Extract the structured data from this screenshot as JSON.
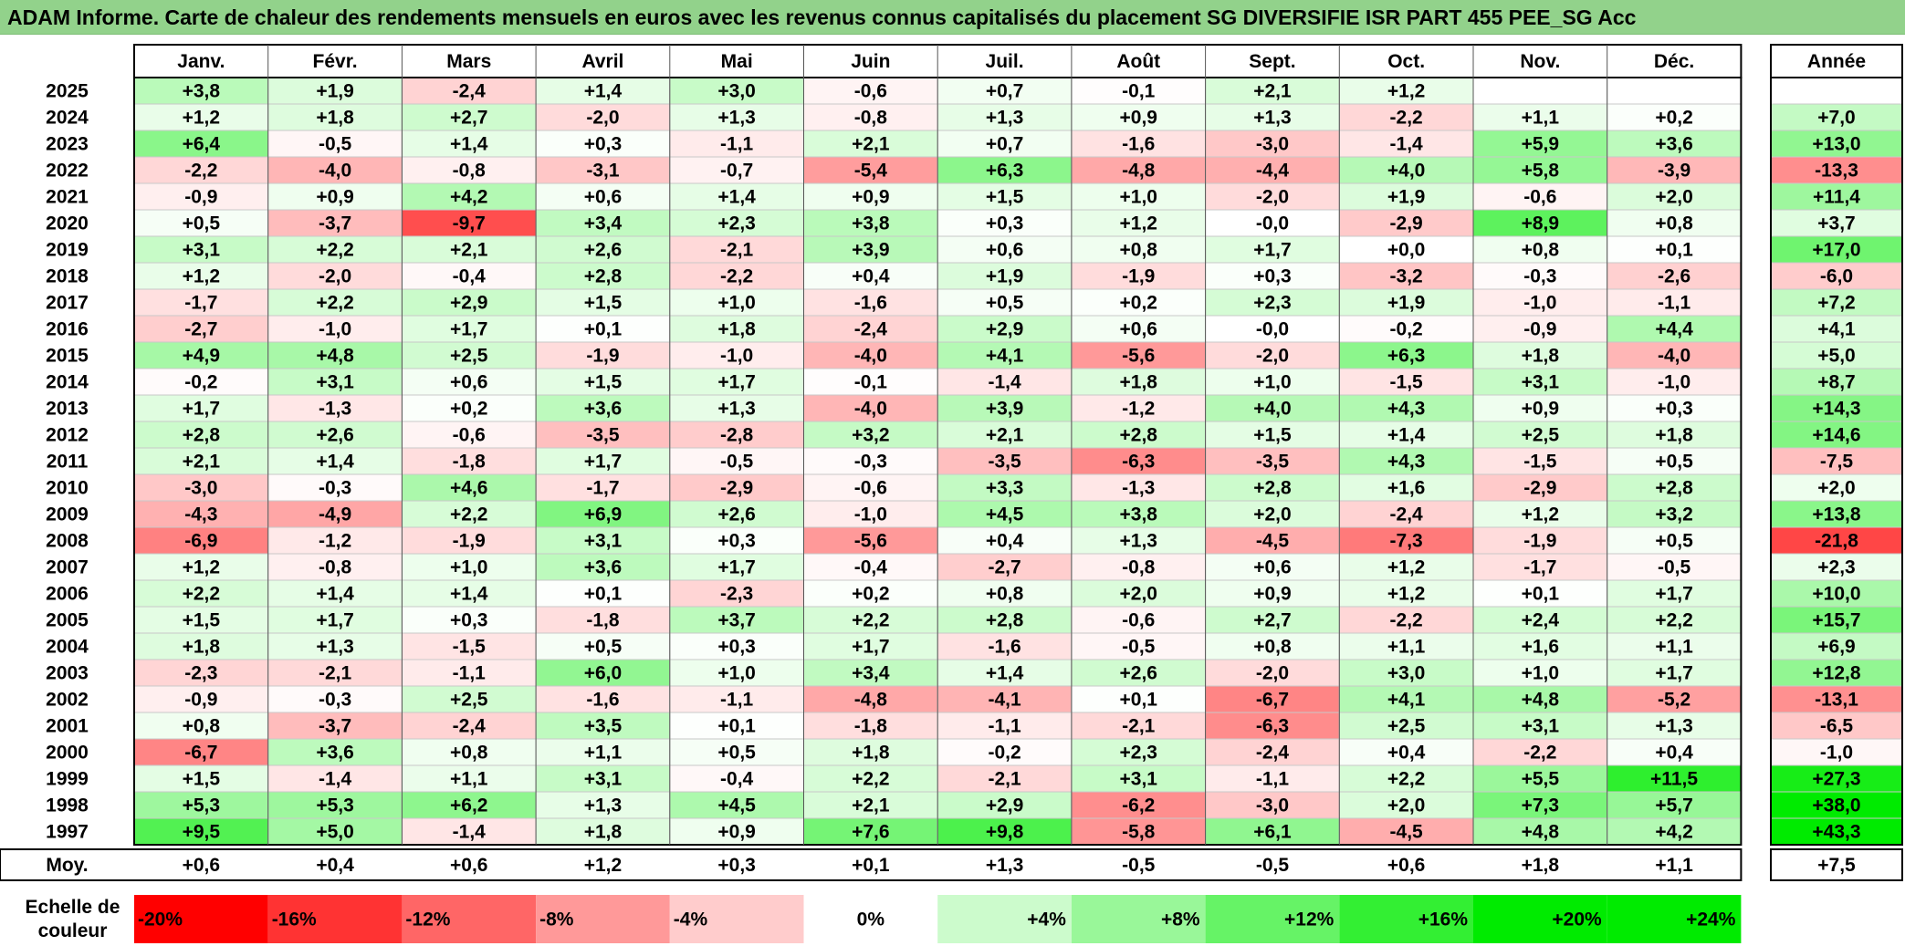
{
  "title": "ADAM Informe. Carte de chaleur des rendements mensuels en euros avec les revenus connus capitalisés du placement SG DIVERSIFIE ISR PART 455 PEE_SG Acc",
  "chart_data": {
    "type": "heatmap",
    "columns": [
      "Janv.",
      "Févr.",
      "Mars",
      "Avril",
      "Mai",
      "Juin",
      "Juil.",
      "Août",
      "Sept.",
      "Oct.",
      "Nov.",
      "Déc."
    ],
    "year_header": "Année",
    "rows": [
      {
        "year": "2025",
        "months": [
          "+3,8",
          "+1,9",
          "-2,4",
          "+1,4",
          "+3,0",
          "-0,6",
          "+0,7",
          "-0,1",
          "+2,1",
          "+1,2",
          "",
          ""
        ],
        "annual": ""
      },
      {
        "year": "2024",
        "months": [
          "+1,2",
          "+1,8",
          "+2,7",
          "-2,0",
          "+1,3",
          "-0,8",
          "+1,3",
          "+0,9",
          "+1,3",
          "-2,2",
          "+1,1",
          "+0,2"
        ],
        "annual": "+7,0"
      },
      {
        "year": "2023",
        "months": [
          "+6,4",
          "-0,5",
          "+1,4",
          "+0,3",
          "-1,1",
          "+2,1",
          "+0,7",
          "-1,6",
          "-3,0",
          "-1,4",
          "+5,9",
          "+3,6"
        ],
        "annual": "+13,0"
      },
      {
        "year": "2022",
        "months": [
          "-2,2",
          "-4,0",
          "-0,8",
          "-3,1",
          "-0,7",
          "-5,4",
          "+6,3",
          "-4,8",
          "-4,4",
          "+4,0",
          "+5,8",
          "-3,9"
        ],
        "annual": "-13,3"
      },
      {
        "year": "2021",
        "months": [
          "-0,9",
          "+0,9",
          "+4,2",
          "+0,6",
          "+1,4",
          "+0,9",
          "+1,5",
          "+1,0",
          "-2,0",
          "+1,9",
          "-0,6",
          "+2,0"
        ],
        "annual": "+11,4"
      },
      {
        "year": "2020",
        "months": [
          "+0,5",
          "-3,7",
          "-9,7",
          "+3,4",
          "+2,3",
          "+3,8",
          "+0,3",
          "+1,2",
          "-0,0",
          "-2,9",
          "+8,9",
          "+0,8"
        ],
        "annual": "+3,7"
      },
      {
        "year": "2019",
        "months": [
          "+3,1",
          "+2,2",
          "+2,1",
          "+2,6",
          "-2,1",
          "+3,9",
          "+0,6",
          "+0,8",
          "+1,7",
          "+0,0",
          "+0,8",
          "+0,1"
        ],
        "annual": "+17,0"
      },
      {
        "year": "2018",
        "months": [
          "+1,2",
          "-2,0",
          "-0,4",
          "+2,8",
          "-2,2",
          "+0,4",
          "+1,9",
          "-1,9",
          "+0,3",
          "-3,2",
          "-0,3",
          "-2,6"
        ],
        "annual": "-6,0"
      },
      {
        "year": "2017",
        "months": [
          "-1,7",
          "+2,2",
          "+2,9",
          "+1,5",
          "+1,0",
          "-1,6",
          "+0,5",
          "+0,2",
          "+2,3",
          "+1,9",
          "-1,0",
          "-1,1"
        ],
        "annual": "+7,2"
      },
      {
        "year": "2016",
        "months": [
          "-2,7",
          "-1,0",
          "+1,7",
          "+0,1",
          "+1,8",
          "-2,4",
          "+2,9",
          "+0,6",
          "-0,0",
          "-0,2",
          "-0,9",
          "+4,4"
        ],
        "annual": "+4,1"
      },
      {
        "year": "2015",
        "months": [
          "+4,9",
          "+4,8",
          "+2,5",
          "-1,9",
          "-1,0",
          "-4,0",
          "+4,1",
          "-5,6",
          "-2,0",
          "+6,3",
          "+1,8",
          "-4,0"
        ],
        "annual": "+5,0"
      },
      {
        "year": "2014",
        "months": [
          "-0,2",
          "+3,1",
          "+0,6",
          "+1,5",
          "+1,7",
          "-0,1",
          "-1,4",
          "+1,8",
          "+1,0",
          "-1,5",
          "+3,1",
          "-1,0"
        ],
        "annual": "+8,7"
      },
      {
        "year": "2013",
        "months": [
          "+1,7",
          "-1,3",
          "+0,2",
          "+3,6",
          "+1,3",
          "-4,0",
          "+3,9",
          "-1,2",
          "+4,0",
          "+4,3",
          "+0,9",
          "+0,3"
        ],
        "annual": "+14,3"
      },
      {
        "year": "2012",
        "months": [
          "+2,8",
          "+2,6",
          "-0,6",
          "-3,5",
          "-2,8",
          "+3,2",
          "+2,1",
          "+2,8",
          "+1,5",
          "+1,4",
          "+2,5",
          "+1,8"
        ],
        "annual": "+14,6"
      },
      {
        "year": "2011",
        "months": [
          "+2,1",
          "+1,4",
          "-1,8",
          "+1,7",
          "-0,5",
          "-0,3",
          "-3,5",
          "-6,3",
          "-3,5",
          "+4,3",
          "-1,5",
          "+0,5"
        ],
        "annual": "-7,5"
      },
      {
        "year": "2010",
        "months": [
          "-3,0",
          "-0,3",
          "+4,6",
          "-1,7",
          "-2,9",
          "-0,6",
          "+3,3",
          "-1,3",
          "+2,8",
          "+1,6",
          "-2,9",
          "+2,8"
        ],
        "annual": "+2,0"
      },
      {
        "year": "2009",
        "months": [
          "-4,3",
          "-4,9",
          "+2,2",
          "+6,9",
          "+2,6",
          "-1,0",
          "+4,5",
          "+3,8",
          "+2,0",
          "-2,4",
          "+1,2",
          "+3,2"
        ],
        "annual": "+13,8"
      },
      {
        "year": "2008",
        "months": [
          "-6,9",
          "-1,2",
          "-1,9",
          "+3,1",
          "+0,3",
          "-5,6",
          "+0,4",
          "+1,3",
          "-4,5",
          "-7,3",
          "-1,9",
          "+0,5"
        ],
        "annual": "-21,8"
      },
      {
        "year": "2007",
        "months": [
          "+1,2",
          "-0,8",
          "+1,0",
          "+3,6",
          "+1,7",
          "-0,4",
          "-2,7",
          "-0,8",
          "+0,6",
          "+1,2",
          "-1,7",
          "-0,5"
        ],
        "annual": "+2,3"
      },
      {
        "year": "2006",
        "months": [
          "+2,2",
          "+1,4",
          "+1,4",
          "+0,1",
          "-2,3",
          "+0,2",
          "+0,8",
          "+2,0",
          "+0,9",
          "+1,2",
          "+0,1",
          "+1,7"
        ],
        "annual": "+10,0"
      },
      {
        "year": "2005",
        "months": [
          "+1,5",
          "+1,7",
          "+0,3",
          "-1,8",
          "+3,7",
          "+2,2",
          "+2,8",
          "-0,6",
          "+2,7",
          "-2,2",
          "+2,4",
          "+2,2"
        ],
        "annual": "+15,7"
      },
      {
        "year": "2004",
        "months": [
          "+1,8",
          "+1,3",
          "-1,5",
          "+0,5",
          "+0,3",
          "+1,7",
          "-1,6",
          "-0,5",
          "+0,8",
          "+1,1",
          "+1,6",
          "+1,1"
        ],
        "annual": "+6,9"
      },
      {
        "year": "2003",
        "months": [
          "-2,3",
          "-2,1",
          "-1,1",
          "+6,0",
          "+1,0",
          "+3,4",
          "+1,4",
          "+2,6",
          "-2,0",
          "+3,0",
          "+1,0",
          "+1,7"
        ],
        "annual": "+12,8"
      },
      {
        "year": "2002",
        "months": [
          "-0,9",
          "-0,3",
          "+2,5",
          "-1,6",
          "-1,1",
          "-4,8",
          "-4,1",
          "+0,1",
          "-6,7",
          "+4,1",
          "+4,8",
          "-5,2"
        ],
        "annual": "-13,1"
      },
      {
        "year": "2001",
        "months": [
          "+0,8",
          "-3,7",
          "-2,4",
          "+3,5",
          "+0,1",
          "-1,8",
          "-1,1",
          "-2,1",
          "-6,3",
          "+2,5",
          "+3,1",
          "+1,3"
        ],
        "annual": "-6,5"
      },
      {
        "year": "2000",
        "months": [
          "-6,7",
          "+3,6",
          "+0,8",
          "+1,1",
          "+0,5",
          "+1,8",
          "-0,2",
          "+2,3",
          "-2,4",
          "+0,4",
          "-2,2",
          "+0,4"
        ],
        "annual": "-1,0"
      },
      {
        "year": "1999",
        "months": [
          "+1,5",
          "-1,4",
          "+1,1",
          "+3,1",
          "-0,4",
          "+2,2",
          "-2,1",
          "+3,1",
          "-1,1",
          "+2,2",
          "+5,5",
          "+11,5"
        ],
        "annual": "+27,3"
      },
      {
        "year": "1998",
        "months": [
          "+5,3",
          "+5,3",
          "+6,2",
          "+1,3",
          "+4,5",
          "+2,1",
          "+2,9",
          "-6,2",
          "-3,0",
          "+2,0",
          "+7,3",
          "+5,7"
        ],
        "annual": "+38,0"
      },
      {
        "year": "1997",
        "months": [
          "+9,5",
          "+5,0",
          "-1,4",
          "+1,8",
          "+0,9",
          "+7,6",
          "+9,8",
          "-5,8",
          "+6,1",
          "-4,5",
          "+4,8",
          "+4,2"
        ],
        "annual": "+43,3"
      }
    ],
    "average": {
      "label": "Moy.",
      "months": [
        "+0,6",
        "+0,4",
        "+0,6",
        "+1,2",
        "+0,3",
        "+0,1",
        "+1,3",
        "-0,5",
        "-0,5",
        "+0,6",
        "+1,8",
        "+1,1"
      ],
      "annual": "+7,5"
    },
    "scale": {
      "label": "Echelle de couleur",
      "stops": [
        "-20%",
        "-16%",
        "-12%",
        "-8%",
        "-4%",
        "0%",
        "+4%",
        "+8%",
        "+12%",
        "+16%",
        "+20%",
        "+24%"
      ],
      "values": [
        -20,
        -16,
        -12,
        -8,
        -4,
        0,
        4,
        8,
        12,
        16,
        20,
        24
      ]
    },
    "colors": {
      "negative_max": "#ff0000",
      "neutral": "#ffffff",
      "positive_max": "#00e600",
      "title_band": "#92d28b"
    }
  }
}
